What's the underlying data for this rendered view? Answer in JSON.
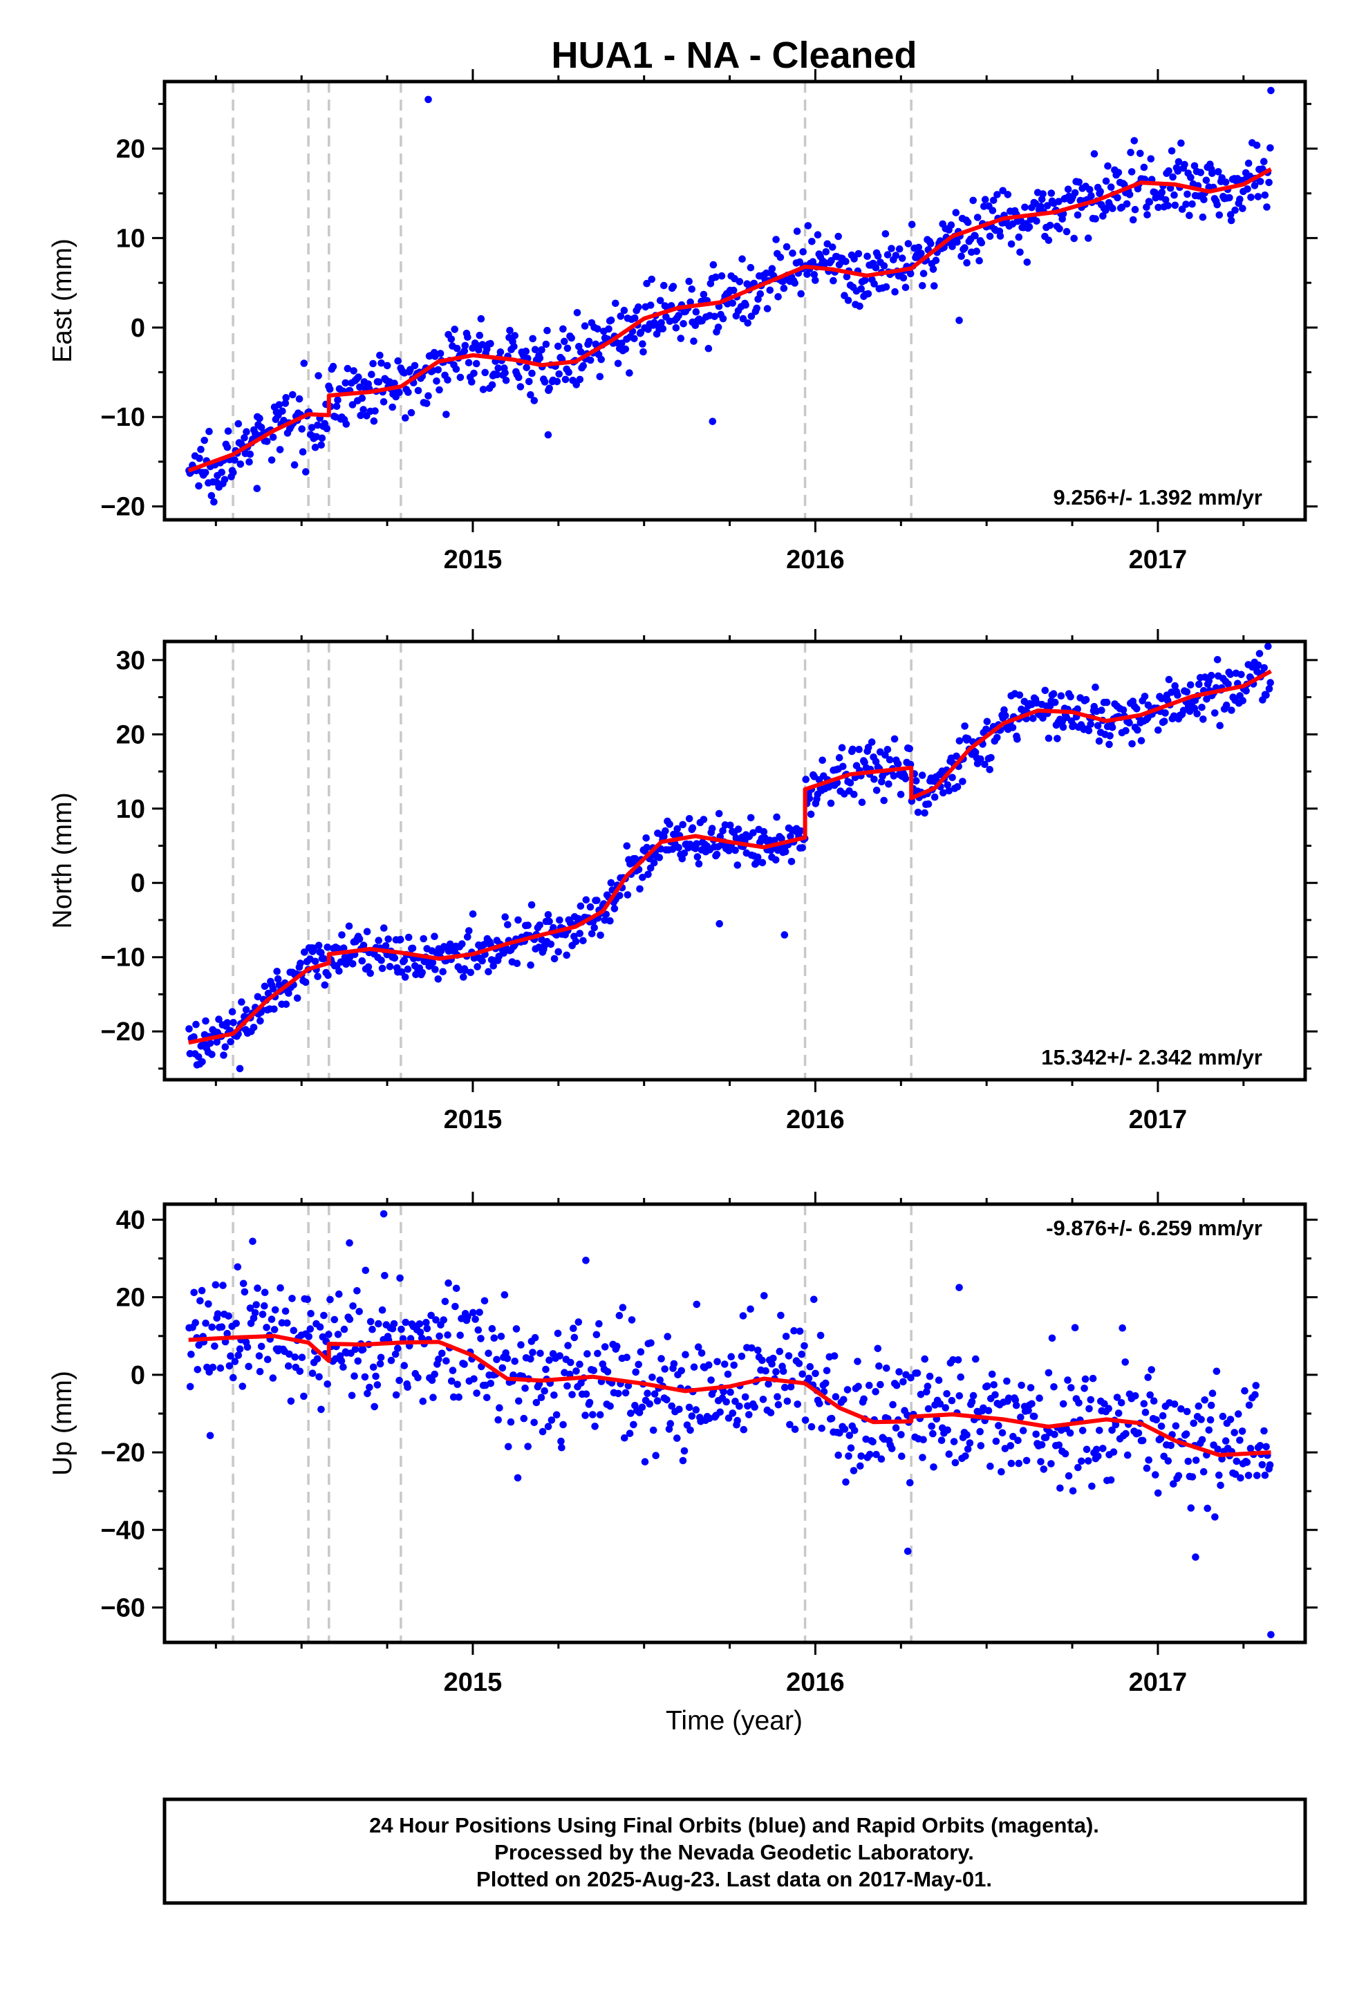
{
  "title": "HUA1  - NA - Cleaned",
  "xlabel": "Time (year)",
  "footer": {
    "line1": "24 Hour Positions Using Final Orbits (blue) and Rapid Orbits (magenta).",
    "line2": "Processed by the Nevada Geodetic Laboratory.",
    "line3": "Plotted on 2025-Aug-23. Last data on 2017-May-01."
  },
  "colors": {
    "points": "#0000ff",
    "fit": "#ff0000",
    "steps": "#c8c8c8",
    "frame": "#000000"
  },
  "chart_data": [
    {
      "type": "scatter",
      "id": "east",
      "ylabel": "East (mm)",
      "rate": "9.256+/- 1.392 mm/yr",
      "rate_position": "bottom-right",
      "xlim": [
        2014.1,
        2017.43
      ],
      "ylim": [
        -21.5,
        27.5
      ],
      "yticks": [
        -20,
        -10,
        0,
        10,
        20
      ],
      "xticks": [
        2015,
        2016,
        2017
      ],
      "step_epochs": [
        2014.3,
        2014.52,
        2014.58,
        2014.79,
        2015.97,
        2016.28
      ],
      "points": {
        "t_start": 2014.17,
        "t_end": 2017.33,
        "count": 900,
        "scatter_mm": 1.8,
        "outliers": [
          [
            2014.87,
            25.5
          ],
          [
            2017.33,
            26.5
          ],
          [
            2015.7,
            -10.5
          ],
          [
            2015.22,
            -12.0
          ],
          [
            2016.42,
            0.8
          ],
          [
            2014.37,
            -18.0
          ]
        ]
      },
      "fit": [
        [
          2014.17,
          -16.0
        ],
        [
          2014.3,
          -14.2
        ],
        [
          2014.42,
          -11.5
        ],
        [
          2014.52,
          -9.7
        ],
        [
          2014.58,
          -9.8
        ],
        [
          2014.58,
          -7.6
        ],
        [
          2014.7,
          -7.2
        ],
        [
          2014.79,
          -6.6
        ],
        [
          2014.9,
          -3.8
        ],
        [
          2015.0,
          -3.1
        ],
        [
          2015.12,
          -3.6
        ],
        [
          2015.2,
          -4.2
        ],
        [
          2015.3,
          -3.8
        ],
        [
          2015.4,
          -1.6
        ],
        [
          2015.5,
          1.0
        ],
        [
          2015.6,
          2.2
        ],
        [
          2015.72,
          2.8
        ],
        [
          2015.82,
          4.4
        ],
        [
          2015.97,
          6.8
        ],
        [
          2016.05,
          6.5
        ],
        [
          2016.15,
          5.8
        ],
        [
          2016.28,
          6.6
        ],
        [
          2016.4,
          10.2
        ],
        [
          2016.55,
          12.2
        ],
        [
          2016.7,
          12.9
        ],
        [
          2016.82,
          14.2
        ],
        [
          2016.95,
          16.2
        ],
        [
          2017.05,
          16.0
        ],
        [
          2017.15,
          15.2
        ],
        [
          2017.25,
          16.0
        ],
        [
          2017.33,
          17.7
        ]
      ]
    },
    {
      "type": "scatter",
      "id": "north",
      "ylabel": "North (mm)",
      "rate": "15.342+/- 2.342 mm/yr",
      "rate_position": "bottom-right",
      "xlim": [
        2014.1,
        2017.43
      ],
      "ylim": [
        -26.5,
        32.5
      ],
      "yticks": [
        -20,
        -10,
        0,
        10,
        20,
        30
      ],
      "xticks": [
        2015,
        2016,
        2017
      ],
      "step_epochs": [
        2014.3,
        2014.52,
        2014.58,
        2014.79,
        2015.97,
        2016.28
      ],
      "points": {
        "t_start": 2014.17,
        "t_end": 2017.33,
        "count": 900,
        "scatter_mm": 1.6,
        "outliers": [
          [
            2015.72,
            -5.5
          ],
          [
            2015.91,
            -7.0
          ],
          [
            2016.3,
            9.5
          ],
          [
            2014.32,
            -25.0
          ]
        ]
      },
      "fit": [
        [
          2014.17,
          -21.5
        ],
        [
          2014.3,
          -20.3
        ],
        [
          2014.4,
          -15.8
        ],
        [
          2014.52,
          -11.6
        ],
        [
          2014.58,
          -10.8
        ],
        [
          2014.58,
          -9.6
        ],
        [
          2014.7,
          -8.9
        ],
        [
          2014.79,
          -9.4
        ],
        [
          2014.9,
          -10.2
        ],
        [
          2015.0,
          -9.6
        ],
        [
          2015.1,
          -8.2
        ],
        [
          2015.2,
          -7.0
        ],
        [
          2015.3,
          -5.9
        ],
        [
          2015.38,
          -3.8
        ],
        [
          2015.45,
          1.0
        ],
        [
          2015.55,
          5.5
        ],
        [
          2015.65,
          6.3
        ],
        [
          2015.75,
          5.5
        ],
        [
          2015.85,
          4.8
        ],
        [
          2015.97,
          6.1
        ],
        [
          2015.97,
          12.6
        ],
        [
          2016.1,
          14.6
        ],
        [
          2016.28,
          15.5
        ],
        [
          2016.28,
          11.4
        ],
        [
          2016.35,
          12.8
        ],
        [
          2016.45,
          18.0
        ],
        [
          2016.55,
          21.5
        ],
        [
          2016.65,
          23.2
        ],
        [
          2016.75,
          23.0
        ],
        [
          2016.85,
          21.8
        ],
        [
          2016.95,
          22.6
        ],
        [
          2017.1,
          25.1
        ],
        [
          2017.25,
          26.5
        ],
        [
          2017.33,
          28.5
        ]
      ]
    },
    {
      "type": "scatter",
      "id": "up",
      "ylabel": "Up (mm)",
      "rate": "-9.876+/- 6.259 mm/yr",
      "rate_position": "top-right",
      "xlim": [
        2014.1,
        2017.43
      ],
      "ylim": [
        -69,
        44
      ],
      "yticks": [
        -60,
        -40,
        -20,
        0,
        20,
        40
      ],
      "xticks": [
        2015,
        2016,
        2017
      ],
      "step_epochs": [
        2014.3,
        2014.52,
        2014.58,
        2014.79,
        2015.97,
        2016.28
      ],
      "points": {
        "t_start": 2014.17,
        "t_end": 2017.33,
        "count": 850,
        "scatter_mm": 8.0,
        "outliers": [
          [
            2014.74,
            41.5
          ],
          [
            2014.64,
            34.0
          ],
          [
            2015.33,
            29.5
          ],
          [
            2016.27,
            -45.5
          ],
          [
            2017.11,
            -47.0
          ],
          [
            2017.33,
            -67.0
          ],
          [
            2016.42,
            22.5
          ]
        ]
      },
      "fit": [
        [
          2014.17,
          9.0
        ],
        [
          2014.3,
          9.6
        ],
        [
          2014.42,
          10.0
        ],
        [
          2014.52,
          8.3
        ],
        [
          2014.58,
          3.6
        ],
        [
          2014.58,
          8.0
        ],
        [
          2014.68,
          7.8
        ],
        [
          2014.79,
          8.3
        ],
        [
          2014.9,
          8.5
        ],
        [
          2015.0,
          5.0
        ],
        [
          2015.1,
          -1.0
        ],
        [
          2015.2,
          -1.5
        ],
        [
          2015.35,
          -0.5
        ],
        [
          2015.5,
          -2.3
        ],
        [
          2015.62,
          -4.2
        ],
        [
          2015.75,
          -3.0
        ],
        [
          2015.85,
          -1.0
        ],
        [
          2015.97,
          -2.2
        ],
        [
          2016.07,
          -8.5
        ],
        [
          2016.17,
          -12.2
        ],
        [
          2016.28,
          -12.0
        ],
        [
          2016.28,
          -10.8
        ],
        [
          2016.4,
          -10.2
        ],
        [
          2016.55,
          -11.5
        ],
        [
          2016.68,
          -13.4
        ],
        [
          2016.85,
          -11.5
        ],
        [
          2016.95,
          -12.5
        ],
        [
          2017.05,
          -17.0
        ],
        [
          2017.18,
          -20.7
        ],
        [
          2017.33,
          -20.0
        ]
      ]
    }
  ]
}
